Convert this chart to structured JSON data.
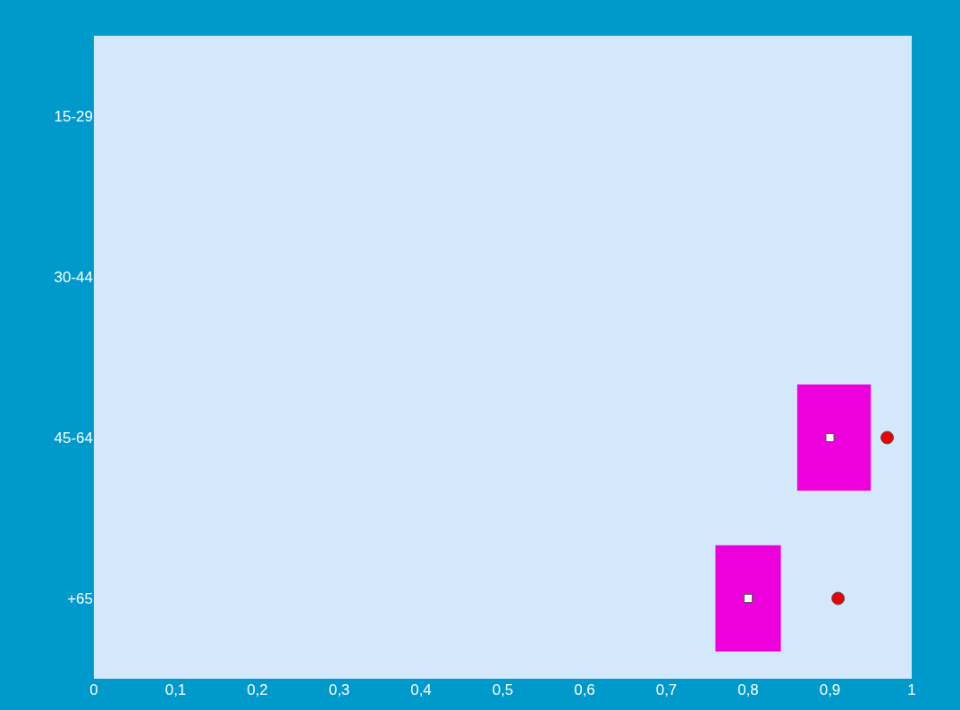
{
  "chart_data": {
    "type": "bar",
    "orientation": "horizontal",
    "categories": [
      "15-29",
      "30-44",
      "45-64",
      "+65"
    ],
    "series": [
      {
        "color": "#ee00dd",
        "base": [
          null,
          null,
          0.86,
          0.76
        ],
        "values": [
          null,
          null,
          0.09,
          0.08
        ]
      },
      {
        "type": "scatter",
        "marker": "square",
        "color": "#ffffff",
        "values": [
          null,
          null,
          0.9,
          0.8
        ]
      },
      {
        "type": "scatter",
        "marker": "circle",
        "color": "#ee0000",
        "values": [
          null,
          null,
          0.97,
          0.91
        ]
      }
    ],
    "xlim": [
      0,
      1
    ],
    "xticks": [
      0,
      {
        "value": 0.1,
        "label": "0,1"
      },
      {
        "value": 0.2,
        "label": "0,2"
      },
      {
        "value": 0.3,
        "label": "0,3"
      },
      {
        "value": 0.4,
        "label": "0,4"
      },
      {
        "value": 0.5,
        "label": "0,5"
      },
      {
        "value": 0.6,
        "label": "0,6"
      },
      {
        "value": 0.7,
        "label": "0,7"
      },
      {
        "value": 0.8,
        "label": "0,8"
      },
      {
        "value": 0.9,
        "label": "0,9"
      },
      1
    ],
    "grid": false,
    "legend": false
  }
}
